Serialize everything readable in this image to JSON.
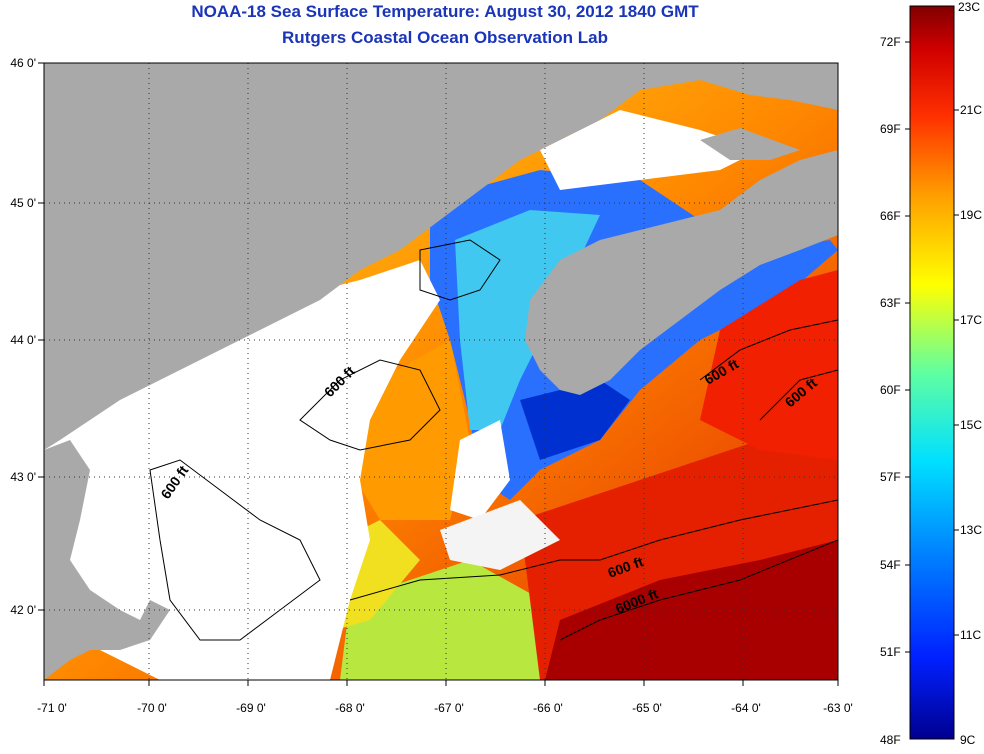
{
  "title": {
    "line1": "NOAA-18 Sea Surface Temperature:  August 30, 2012 1840 GMT",
    "line2": "Rutgers Coastal Ocean Observation Lab"
  },
  "map": {
    "lon_ticks": [
      "-71 0'",
      "-70 0'",
      "-69 0'",
      "-68 0'",
      "-67 0'",
      "-66 0'",
      "-65 0'",
      "-64 0'",
      "-63 0'"
    ],
    "lat_ticks": [
      "46 0'",
      "45 0'",
      "44 0'",
      "43 0'",
      "42 0'"
    ],
    "lon_range": [
      -71,
      -63
    ],
    "lat_range": [
      41.5,
      46
    ],
    "contour_labels": [
      "600 ft",
      "600 ft",
      "600 ft",
      "600 ft",
      "600 ft",
      "6000 ft"
    ],
    "colors": {
      "land": "#a9a9a9",
      "cloud": "#ffffff",
      "contour": "#000000"
    }
  },
  "colorbar": {
    "fahrenheit": [
      "72F",
      "69F",
      "66F",
      "63F",
      "60F",
      "57F",
      "54F",
      "51F",
      "48F"
    ],
    "celsius": [
      "23C",
      "21C",
      "19C",
      "17C",
      "15C",
      "13C",
      "11C",
      "9C"
    ],
    "colors": [
      "#00008f",
      "#0020ff",
      "#0080ff",
      "#00e0ff",
      "#60ffa0",
      "#ffff00",
      "#ffa000",
      "#ff3000",
      "#d00000",
      "#800000"
    ]
  }
}
